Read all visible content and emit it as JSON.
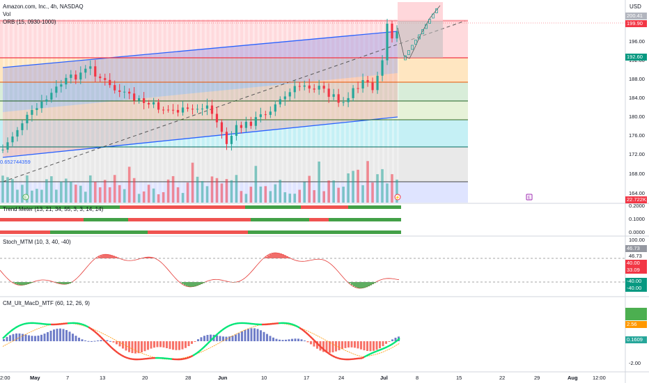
{
  "header": {
    "title": "Amazon.com, Inc., 4h, NASDAQ",
    "indicator_vol": "Vol",
    "indicator_orb": "ORB (15, 0930-1000)"
  },
  "currency": "USD",
  "volume_left_label": "0.652744359",
  "price_axis": {
    "ticks": [
      "196.00",
      "192.00",
      "188.00",
      "184.00",
      "180.00",
      "176.00",
      "172.00",
      "168.00",
      "164.00"
    ]
  },
  "price_tags": [
    {
      "text": "200.41",
      "color": "#b2b5be"
    },
    {
      "text": "199.90",
      "color": "#f23645"
    },
    {
      "text": "192.60",
      "color": "#089981"
    },
    {
      "text": "22.722K",
      "color": "#f23645"
    }
  ],
  "panes": {
    "trend_meter": {
      "title": "Trend Meter (13, 21, 34, 55, 3, 3, 14, 14)",
      "ticks": [
        "0.2000",
        "0.1000",
        "0.0000"
      ]
    },
    "stoch": {
      "title": "Stoch_MTM (10, 3, 40, -40)",
      "ticks": [
        "100.00",
        "46.73",
        "-40.00"
      ],
      "tags": [
        {
          "text": "46.73",
          "color": "#9598a1"
        },
        {
          "text": "40.00",
          "color": "#f23645"
        },
        {
          "text": "33.09",
          "color": "#f23645"
        },
        {
          "text": "-40.00",
          "color": "#089981"
        },
        {
          "text": "-40.00",
          "color": "#089981"
        }
      ]
    },
    "macd": {
      "title": "CM_Ult_MacD_MTF (60, 12, 26, 9)",
      "ticks": [
        "-2.00"
      ],
      "tags": [
        {
          "text": "",
          "color": "#4caf50"
        },
        {
          "text": "2.56",
          "color": "#ff9800"
        },
        {
          "text": "0.1609",
          "color": "#26a69a"
        }
      ]
    }
  },
  "time_axis": [
    {
      "label": "2:00",
      "bold": false
    },
    {
      "label": "May",
      "bold": true
    },
    {
      "label": "7",
      "bold": false
    },
    {
      "label": "13",
      "bold": false
    },
    {
      "label": "20",
      "bold": false
    },
    {
      "label": "28",
      "bold": false
    },
    {
      "label": "Jun",
      "bold": true
    },
    {
      "label": "10",
      "bold": false
    },
    {
      "label": "17",
      "bold": false
    },
    {
      "label": "24",
      "bold": false
    },
    {
      "label": "Jul",
      "bold": true
    },
    {
      "label": "8",
      "bold": false
    },
    {
      "label": "15",
      "bold": false
    },
    {
      "label": "22",
      "bold": false
    },
    {
      "label": "29",
      "bold": false
    },
    {
      "label": "Aug",
      "bold": true
    },
    {
      "label": "12:00",
      "bold": false
    }
  ],
  "colors": {
    "bull": "#26a69a",
    "bear": "#f23645",
    "channel": "#2962ff",
    "zone_red": "#ffcdd2",
    "zone_orange": "#ffe0b2",
    "zone_green": "#c8e6c9",
    "zone_cyan": "#b2ebf2",
    "zone_gray": "#e0e0e0",
    "zone_blue": "#d1d9ff"
  }
}
